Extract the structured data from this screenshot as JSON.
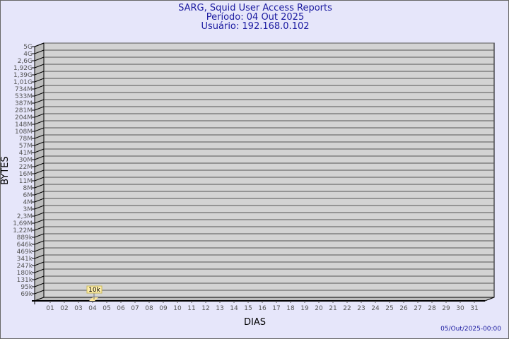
{
  "chart_data": {
    "type": "bar",
    "title": "SARG, Squid User Access Reports",
    "subtitle_period": "Período: 04 Out 2025",
    "subtitle_user": "Usuário: 192.168.0.102",
    "xlabel": "DIAS",
    "ylabel": "BYTES",
    "y_scale": "log",
    "grid": true,
    "categories": [
      "01",
      "02",
      "03",
      "04",
      "05",
      "06",
      "07",
      "08",
      "09",
      "10",
      "11",
      "12",
      "13",
      "14",
      "15",
      "16",
      "17",
      "18",
      "19",
      "20",
      "21",
      "22",
      "23",
      "24",
      "25",
      "26",
      "27",
      "28",
      "29",
      "30",
      "31"
    ],
    "y_tick_labels": [
      "5G",
      "4G",
      "2,6G",
      "1,92G",
      "1,39G",
      "1,01G",
      "734M",
      "533M",
      "387M",
      "281M",
      "204M",
      "148M",
      "108M",
      "78M",
      "57M",
      "41M",
      "30M",
      "22M",
      "16M",
      "11M",
      "8M",
      "6M",
      "4M",
      "3M",
      "2,3M",
      "1,69M",
      "1,22M",
      "889k",
      "646k",
      "469k",
      "341k",
      "247k",
      "180k",
      "131k",
      "95k",
      "69k"
    ],
    "series": [
      {
        "values": [
          null,
          null,
          null,
          10000,
          null,
          null,
          null,
          null,
          null,
          null,
          null,
          null,
          null,
          null,
          null,
          null,
          null,
          null,
          null,
          null,
          null,
          null,
          null,
          null,
          null,
          null,
          null,
          null,
          null,
          null,
          null
        ]
      }
    ],
    "data_labels": [
      {
        "category": "04",
        "text": "10k"
      }
    ],
    "bar_color": "#ffe89a",
    "wall_color": "#d3d3d3"
  },
  "footer_timestamp": "05/Out/2025-00:00"
}
